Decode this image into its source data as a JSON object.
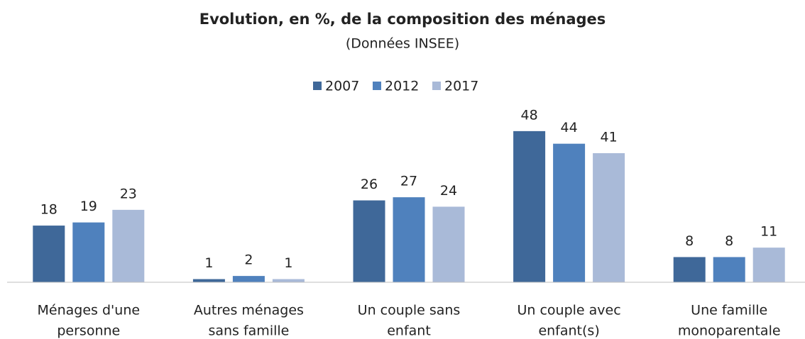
{
  "chart_data": {
    "type": "bar",
    "title": "Evolution, en %, de la composition des ménages",
    "subtitle": "(Données INSEE)",
    "categories": [
      [
        "Ménages d'une",
        "personne"
      ],
      [
        "Autres ménages",
        "sans famille"
      ],
      [
        "Un couple sans",
        "enfant"
      ],
      [
        "Un couple avec",
        "enfant(s)"
      ],
      [
        "Une famille",
        "monoparentale"
      ]
    ],
    "series": [
      {
        "name": "2007",
        "color": "#3f6899",
        "values": [
          18,
          1,
          26,
          48,
          8
        ]
      },
      {
        "name": "2012",
        "color": "#4f81bd",
        "values": [
          19,
          2,
          27,
          44,
          8
        ]
      },
      {
        "name": "2017",
        "color": "#a9bad8",
        "values": [
          23,
          1,
          24,
          41,
          11
        ]
      }
    ],
    "ylim": [
      0,
      50
    ],
    "legend": "top"
  }
}
